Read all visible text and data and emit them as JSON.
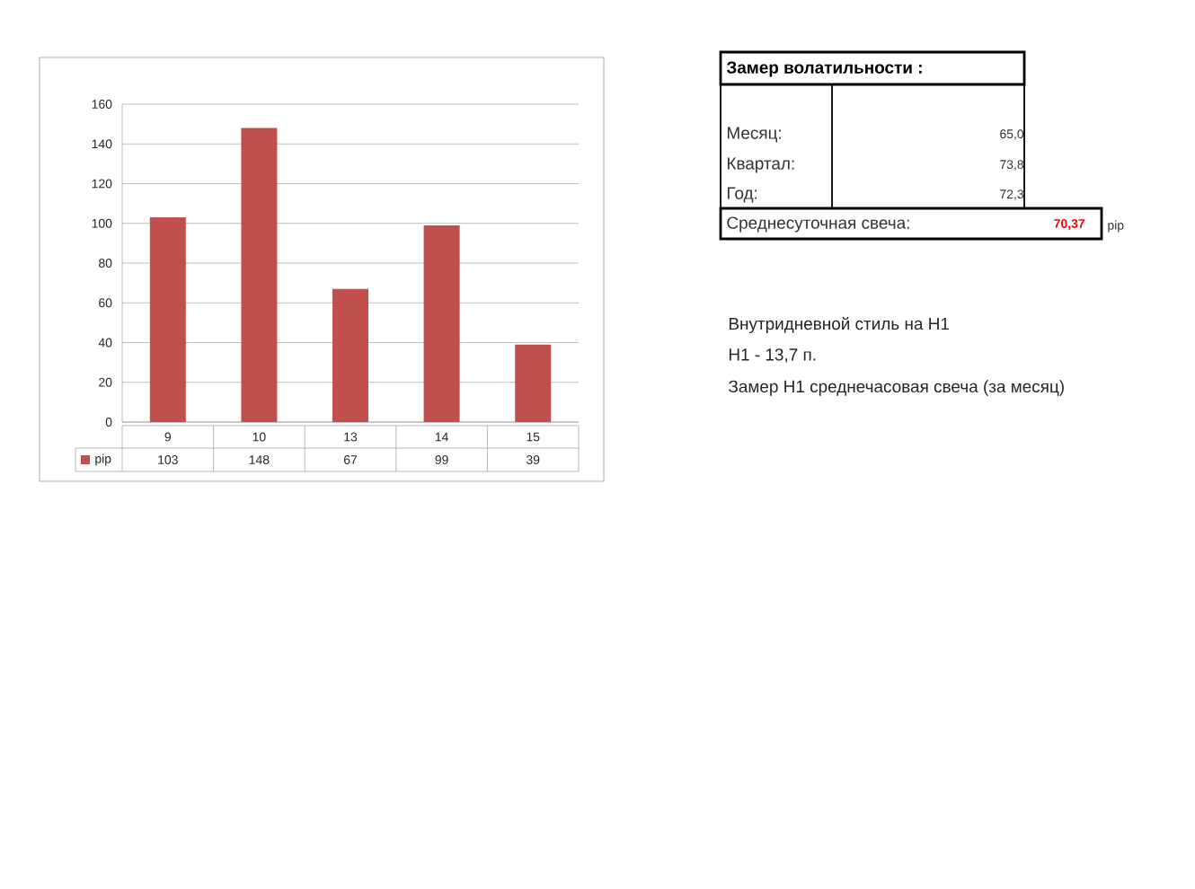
{
  "chart_data": [
    {
      "type": "bar",
      "categories": [
        "9",
        "10",
        "13",
        "14",
        "15"
      ],
      "series": [
        {
          "name": "pip",
          "color": "#c0504d",
          "values": [
            103,
            148,
            67,
            99,
            39
          ]
        }
      ],
      "ylim": [
        0,
        160
      ],
      "yticks": [
        0,
        20,
        40,
        60,
        80,
        100,
        120,
        140,
        160
      ],
      "grid": "y",
      "data_labels": true,
      "legend": "bottom left"
    },
    {
      "type": "other",
      "title": "Замер волатильности :",
      "annotations": [
        "Месяц:",
        "65,0",
        "Квартал:",
        "73,8",
        "Год:",
        "72,3",
        "Среднесуточная свеча:",
        "70,37",
        "pip",
        "Внутридневной стиль на H1",
        "H1 - 13,7 п.",
        "Замер H1 среднечасовая свеча (за месяц)"
      ]
    }
  ]
}
